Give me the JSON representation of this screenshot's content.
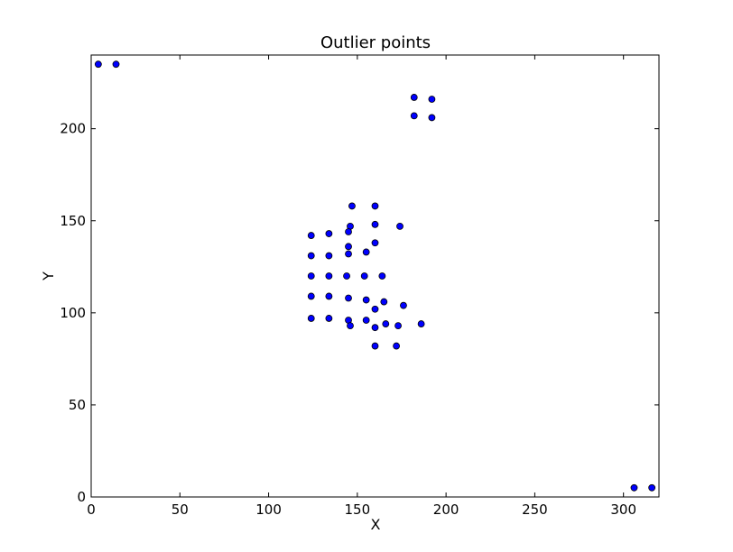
{
  "chart_data": {
    "type": "scatter",
    "title": "Outlier points",
    "xlabel": "X",
    "ylabel": "Y",
    "xlim": [
      0,
      320
    ],
    "ylim": [
      0,
      240
    ],
    "xticks": [
      0,
      50,
      100,
      150,
      200,
      250,
      300
    ],
    "yticks": [
      0,
      50,
      100,
      150,
      200
    ],
    "grid": false,
    "legend": "none",
    "marker_color": "#0000ff",
    "marker_edge_color": "#000000",
    "points": [
      {
        "x": 4,
        "y": 235
      },
      {
        "x": 14,
        "y": 235
      },
      {
        "x": 182,
        "y": 217
      },
      {
        "x": 192,
        "y": 216
      },
      {
        "x": 182,
        "y": 207
      },
      {
        "x": 192,
        "y": 206
      },
      {
        "x": 147,
        "y": 158
      },
      {
        "x": 160,
        "y": 158
      },
      {
        "x": 146,
        "y": 147
      },
      {
        "x": 160,
        "y": 148
      },
      {
        "x": 174,
        "y": 147
      },
      {
        "x": 124,
        "y": 142
      },
      {
        "x": 134,
        "y": 143
      },
      {
        "x": 145,
        "y": 144
      },
      {
        "x": 160,
        "y": 138
      },
      {
        "x": 145,
        "y": 136
      },
      {
        "x": 155,
        "y": 133
      },
      {
        "x": 124,
        "y": 131
      },
      {
        "x": 134,
        "y": 131
      },
      {
        "x": 145,
        "y": 132
      },
      {
        "x": 124,
        "y": 120
      },
      {
        "x": 134,
        "y": 120
      },
      {
        "x": 144,
        "y": 120
      },
      {
        "x": 154,
        "y": 120
      },
      {
        "x": 164,
        "y": 120
      },
      {
        "x": 124,
        "y": 109
      },
      {
        "x": 134,
        "y": 109
      },
      {
        "x": 145,
        "y": 108
      },
      {
        "x": 155,
        "y": 107
      },
      {
        "x": 165,
        "y": 106
      },
      {
        "x": 176,
        "y": 104
      },
      {
        "x": 160,
        "y": 102
      },
      {
        "x": 124,
        "y": 97
      },
      {
        "x": 134,
        "y": 97
      },
      {
        "x": 145,
        "y": 96
      },
      {
        "x": 155,
        "y": 96
      },
      {
        "x": 166,
        "y": 94
      },
      {
        "x": 186,
        "y": 94
      },
      {
        "x": 146,
        "y": 93
      },
      {
        "x": 160,
        "y": 92
      },
      {
        "x": 173,
        "y": 93
      },
      {
        "x": 160,
        "y": 82
      },
      {
        "x": 172,
        "y": 82
      },
      {
        "x": 306,
        "y": 5
      },
      {
        "x": 316,
        "y": 5
      }
    ]
  }
}
